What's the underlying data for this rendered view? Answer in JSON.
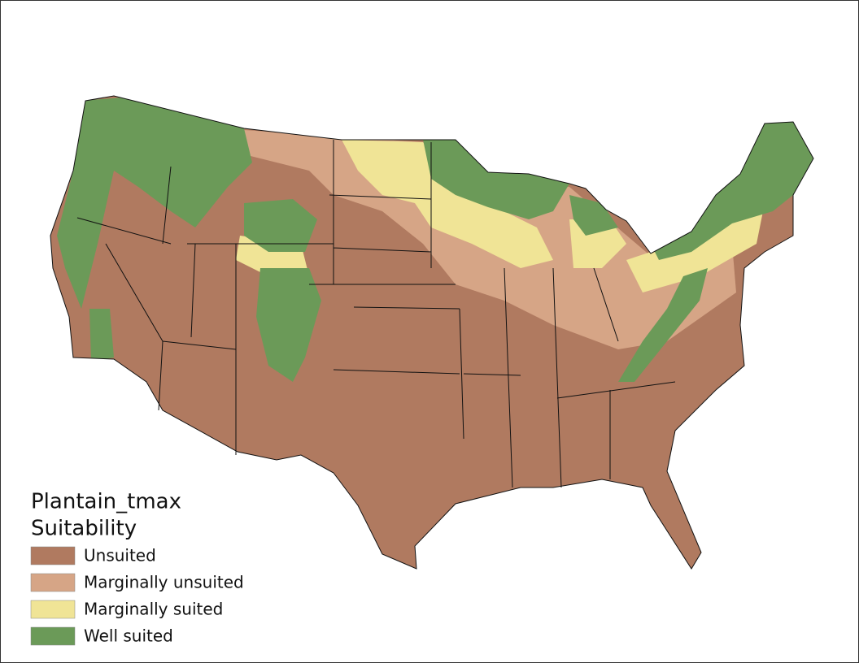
{
  "legend": {
    "title": "Plantain_tmax",
    "subtitle": "Suitability",
    "items": [
      {
        "label": "Unsuited",
        "color": "#b07a60"
      },
      {
        "label": "Marginally unsuited",
        "color": "#d6a586"
      },
      {
        "label": "Marginally suited",
        "color": "#f0e496"
      },
      {
        "label": "Well suited",
        "color": "#6b9a58"
      }
    ]
  }
}
